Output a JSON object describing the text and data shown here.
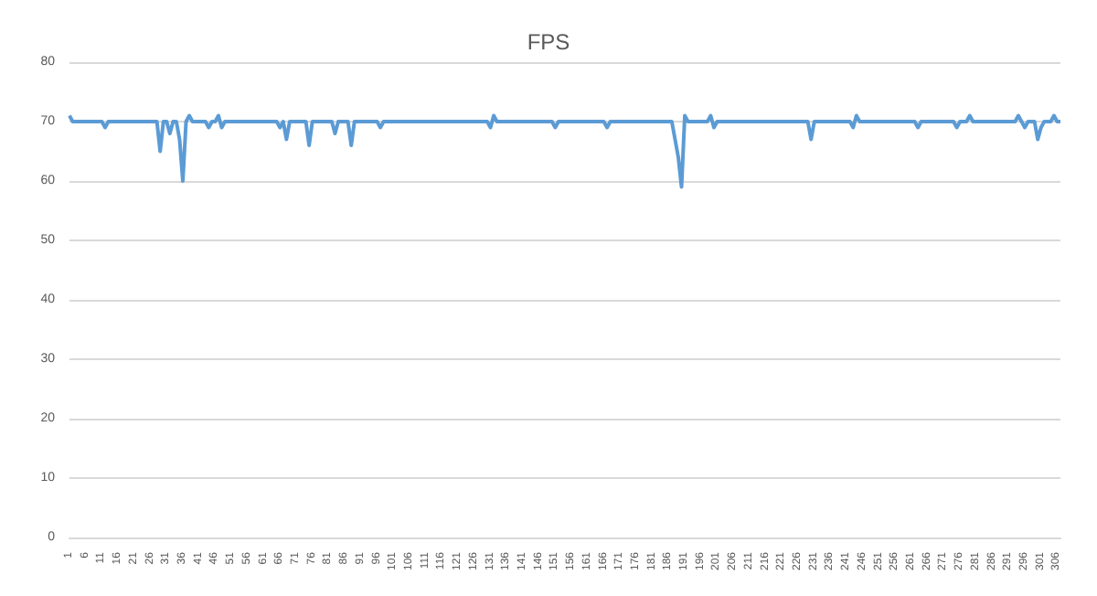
{
  "chart_data": {
    "type": "line",
    "title": "FPS",
    "categories": [
      "1",
      null,
      null,
      null,
      null,
      "6",
      null,
      null,
      null,
      null,
      "11",
      null,
      null,
      null,
      null,
      "16",
      null,
      null,
      null,
      null,
      "21",
      null,
      null,
      null,
      null,
      "26",
      null,
      null,
      null,
      null,
      "31",
      null,
      null,
      null,
      null,
      "36",
      null,
      null,
      null,
      null,
      "41",
      null,
      null,
      null,
      null,
      "46",
      null,
      null,
      null,
      null,
      "51",
      null,
      null,
      null,
      null,
      "56",
      null,
      null,
      null,
      null,
      "61",
      null,
      null,
      null,
      null,
      "66",
      null,
      null,
      null,
      null,
      "71",
      null,
      null,
      null,
      null,
      "76",
      null,
      null,
      null,
      null,
      "81",
      null,
      null,
      null,
      null,
      "86",
      null,
      null,
      null,
      null,
      "91",
      null,
      null,
      null,
      null,
      "96",
      null,
      null,
      null,
      null,
      "101",
      null,
      null,
      null,
      null,
      "106",
      null,
      null,
      null,
      null,
      "111",
      null,
      null,
      null,
      null,
      "116",
      null,
      null,
      null,
      null,
      "121",
      null,
      null,
      null,
      null,
      "126",
      null,
      null,
      null,
      null,
      "131",
      null,
      null,
      null,
      null,
      "136",
      null,
      null,
      null,
      null,
      "141",
      null,
      null,
      null,
      null,
      "146",
      null,
      null,
      null,
      null,
      "151",
      null,
      null,
      null,
      null,
      "156",
      null,
      null,
      null,
      null,
      "161",
      null,
      null,
      null,
      null,
      "166",
      null,
      null,
      null,
      null,
      "171",
      null,
      null,
      null,
      null,
      "176",
      null,
      null,
      null,
      null,
      "181",
      null,
      null,
      null,
      null,
      "186",
      null,
      null,
      null,
      null,
      "191",
      null,
      null,
      null,
      null,
      "196",
      null,
      null,
      null,
      null,
      "201",
      null,
      null,
      null,
      null,
      "206",
      null,
      null,
      null,
      null,
      "211",
      null,
      null,
      null,
      null,
      "216",
      null,
      null,
      null,
      null,
      "221",
      null,
      null,
      null,
      null,
      "226",
      null,
      null,
      null,
      null,
      "231",
      null,
      null,
      null,
      null,
      "236",
      null,
      null,
      null,
      null,
      "241",
      null,
      null,
      null,
      null,
      "246",
      null,
      null,
      null,
      null,
      "251",
      null,
      null,
      null,
      null,
      "256",
      null,
      null,
      null,
      null,
      "261",
      null,
      null,
      null,
      null,
      "266",
      null,
      null,
      null,
      null,
      "271",
      null,
      null,
      null,
      null,
      "276",
      null,
      null,
      null,
      null,
      "281",
      null,
      null,
      null,
      null,
      "286",
      null,
      null,
      null,
      null,
      "291",
      null,
      null,
      null,
      null,
      "296",
      null,
      null,
      null,
      null,
      "301",
      null,
      null,
      null,
      null,
      "306",
      null
    ],
    "series": [
      {
        "color": "#5b9bd5",
        "values": [
          71,
          70,
          70,
          70,
          70,
          70,
          70,
          70,
          70,
          70,
          70,
          69,
          70,
          70,
          70,
          70,
          70,
          70,
          70,
          70,
          70,
          70,
          70,
          70,
          70,
          70,
          70,
          70,
          65,
          70,
          70,
          68,
          70,
          70,
          67,
          60,
          70,
          71,
          70,
          70,
          70,
          70,
          70,
          69,
          70,
          70,
          71,
          69,
          70,
          70,
          70,
          70,
          70,
          70,
          70,
          70,
          70,
          70,
          70,
          70,
          70,
          70,
          70,
          70,
          70,
          69,
          70,
          67,
          70,
          70,
          70,
          70,
          70,
          70,
          66,
          70,
          70,
          70,
          70,
          70,
          70,
          70,
          68,
          70,
          70,
          70,
          70,
          66,
          70,
          70,
          70,
          70,
          70,
          70,
          70,
          70,
          69,
          70,
          70,
          70,
          70,
          70,
          70,
          70,
          70,
          70,
          70,
          70,
          70,
          70,
          70,
          70,
          70,
          70,
          70,
          70,
          70,
          70,
          70,
          70,
          70,
          70,
          70,
          70,
          70,
          70,
          70,
          70,
          70,
          70,
          69,
          71,
          70,
          70,
          70,
          70,
          70,
          70,
          70,
          70,
          70,
          70,
          70,
          70,
          70,
          70,
          70,
          70,
          70,
          70,
          69,
          70,
          70,
          70,
          70,
          70,
          70,
          70,
          70,
          70,
          70,
          70,
          70,
          70,
          70,
          70,
          69,
          70,
          70,
          70,
          70,
          70,
          70,
          70,
          70,
          70,
          70,
          70,
          70,
          70,
          70,
          70,
          70,
          70,
          70,
          70,
          70,
          67,
          64,
          59,
          71,
          70,
          70,
          70,
          70,
          70,
          70,
          70,
          71,
          69,
          70,
          70,
          70,
          70,
          70,
          70,
          70,
          70,
          70,
          70,
          70,
          70,
          70,
          70,
          70,
          70,
          70,
          70,
          70,
          70,
          70,
          70,
          70,
          70,
          70,
          70,
          70,
          70,
          70,
          67,
          70,
          70,
          70,
          70,
          70,
          70,
          70,
          70,
          70,
          70,
          70,
          70,
          69,
          71,
          70,
          70,
          70,
          70,
          70,
          70,
          70,
          70,
          70,
          70,
          70,
          70,
          70,
          70,
          70,
          70,
          70,
          70,
          69,
          70,
          70,
          70,
          70,
          70,
          70,
          70,
          70,
          70,
          70,
          70,
          69,
          70,
          70,
          70,
          71,
          70,
          70,
          70,
          70,
          70,
          70,
          70,
          70,
          70,
          70,
          70,
          70,
          70,
          70,
          71,
          70,
          69,
          70,
          70,
          70,
          67,
          69,
          70,
          70,
          70,
          71,
          70,
          70
        ]
      }
    ],
    "ylim": [
      0,
      80
    ],
    "yticks": [
      0,
      10,
      20,
      30,
      40,
      50,
      60,
      70,
      80
    ],
    "grid": "y",
    "marker": "none",
    "line_style": "solid"
  }
}
